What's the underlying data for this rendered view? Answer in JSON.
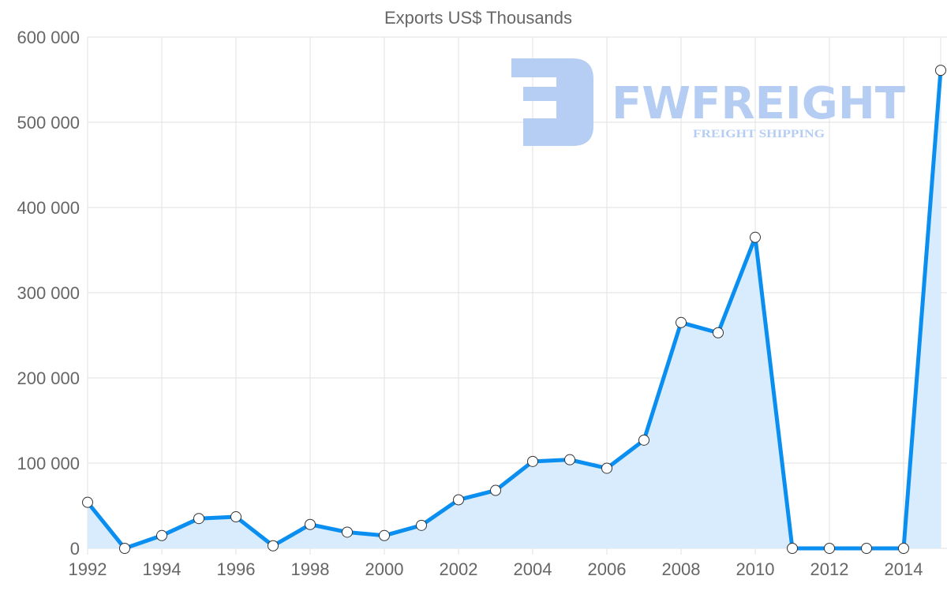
{
  "chart_data": {
    "type": "area",
    "title": "Exports US$ Thousands",
    "xlabel": "",
    "ylabel": "",
    "x": [
      1992,
      1993,
      1994,
      1995,
      1996,
      1997,
      1998,
      1999,
      2000,
      2001,
      2002,
      2003,
      2004,
      2005,
      2006,
      2007,
      2008,
      2009,
      2010,
      2011,
      2012,
      2013,
      2014,
      2015
    ],
    "series": [
      {
        "name": "Exports US$ Thousands",
        "values": [
          54000,
          0,
          15000,
          35000,
          37000,
          3000,
          28000,
          19000,
          15000,
          27000,
          57000,
          68000,
          102000,
          104000,
          94000,
          127000,
          265000,
          253000,
          365000,
          0,
          0,
          0,
          0,
          561000
        ]
      }
    ],
    "xticks": [
      "1992",
      "1994",
      "1996",
      "1998",
      "2000",
      "2002",
      "2004",
      "2006",
      "2008",
      "2010",
      "2012",
      "2014"
    ],
    "yticks": [
      "0",
      "100 000",
      "200 000",
      "300 000",
      "400 000",
      "500 000",
      "600 000"
    ],
    "ylim": [
      0,
      600000
    ],
    "xlim": [
      1992,
      2015
    ],
    "grid": true,
    "legend": "none",
    "colors": {
      "line": "#0a8ff0",
      "fill": "#d9ecfd",
      "grid": "#e2e2e2",
      "watermark": "#b3cbf3"
    },
    "watermark": {
      "brand": "FWFREIGHT",
      "tagline": "FREIGHT SHIPPING"
    }
  }
}
